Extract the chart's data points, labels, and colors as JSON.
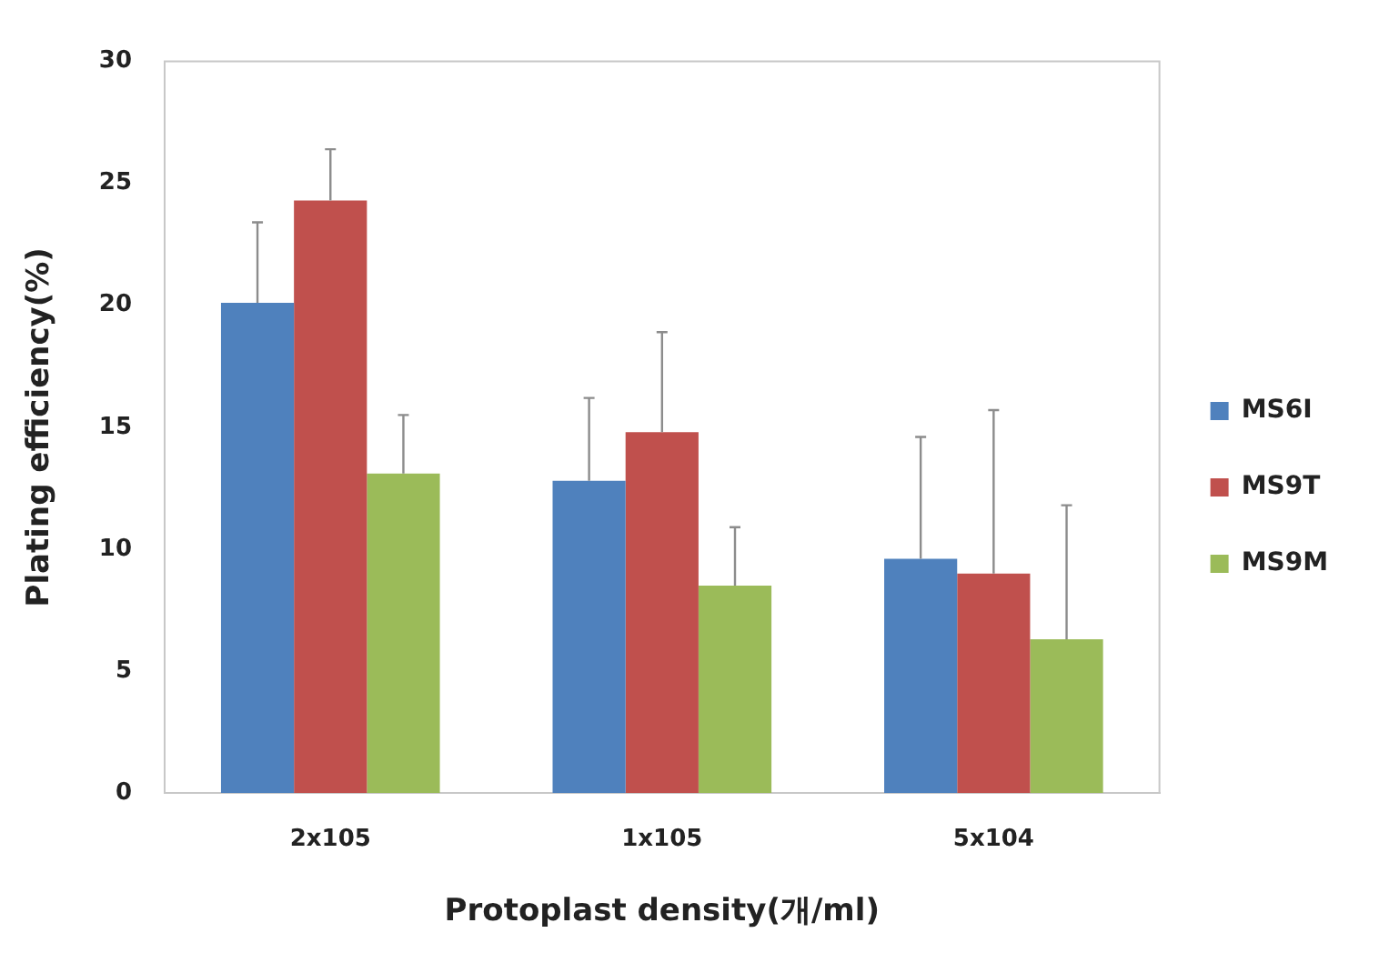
{
  "chart_data": {
    "type": "bar",
    "xlabel": "Protoplast density(개/ml)",
    "ylabel": "Plating efficiency(%)",
    "categories": [
      "2x105",
      "1x105",
      "5x104"
    ],
    "series": [
      {
        "name": "MS6I",
        "color": "#4f81bd",
        "values": [
          20.1,
          12.8,
          9.6
        ],
        "errors": [
          [
            20.1,
            23.4
          ],
          [
            12.8,
            16.2
          ],
          [
            9.6,
            14.6
          ]
        ]
      },
      {
        "name": "MS9T",
        "color": "#c0504d",
        "values": [
          24.3,
          14.8,
          9.0
        ],
        "errors": [
          [
            24.3,
            26.4
          ],
          [
            14.8,
            18.9
          ],
          [
            9.0,
            15.7
          ]
        ]
      },
      {
        "name": "MS9M",
        "color": "#9bbb59",
        "values": [
          13.1,
          8.5,
          6.3
        ],
        "errors": [
          [
            13.1,
            15.5
          ],
          [
            8.5,
            10.9
          ],
          [
            6.3,
            11.8
          ]
        ]
      }
    ],
    "ylim": [
      0,
      30
    ],
    "yticks": [
      0,
      5,
      10,
      15,
      20,
      25,
      30
    ],
    "grid": false,
    "legend": "right"
  }
}
